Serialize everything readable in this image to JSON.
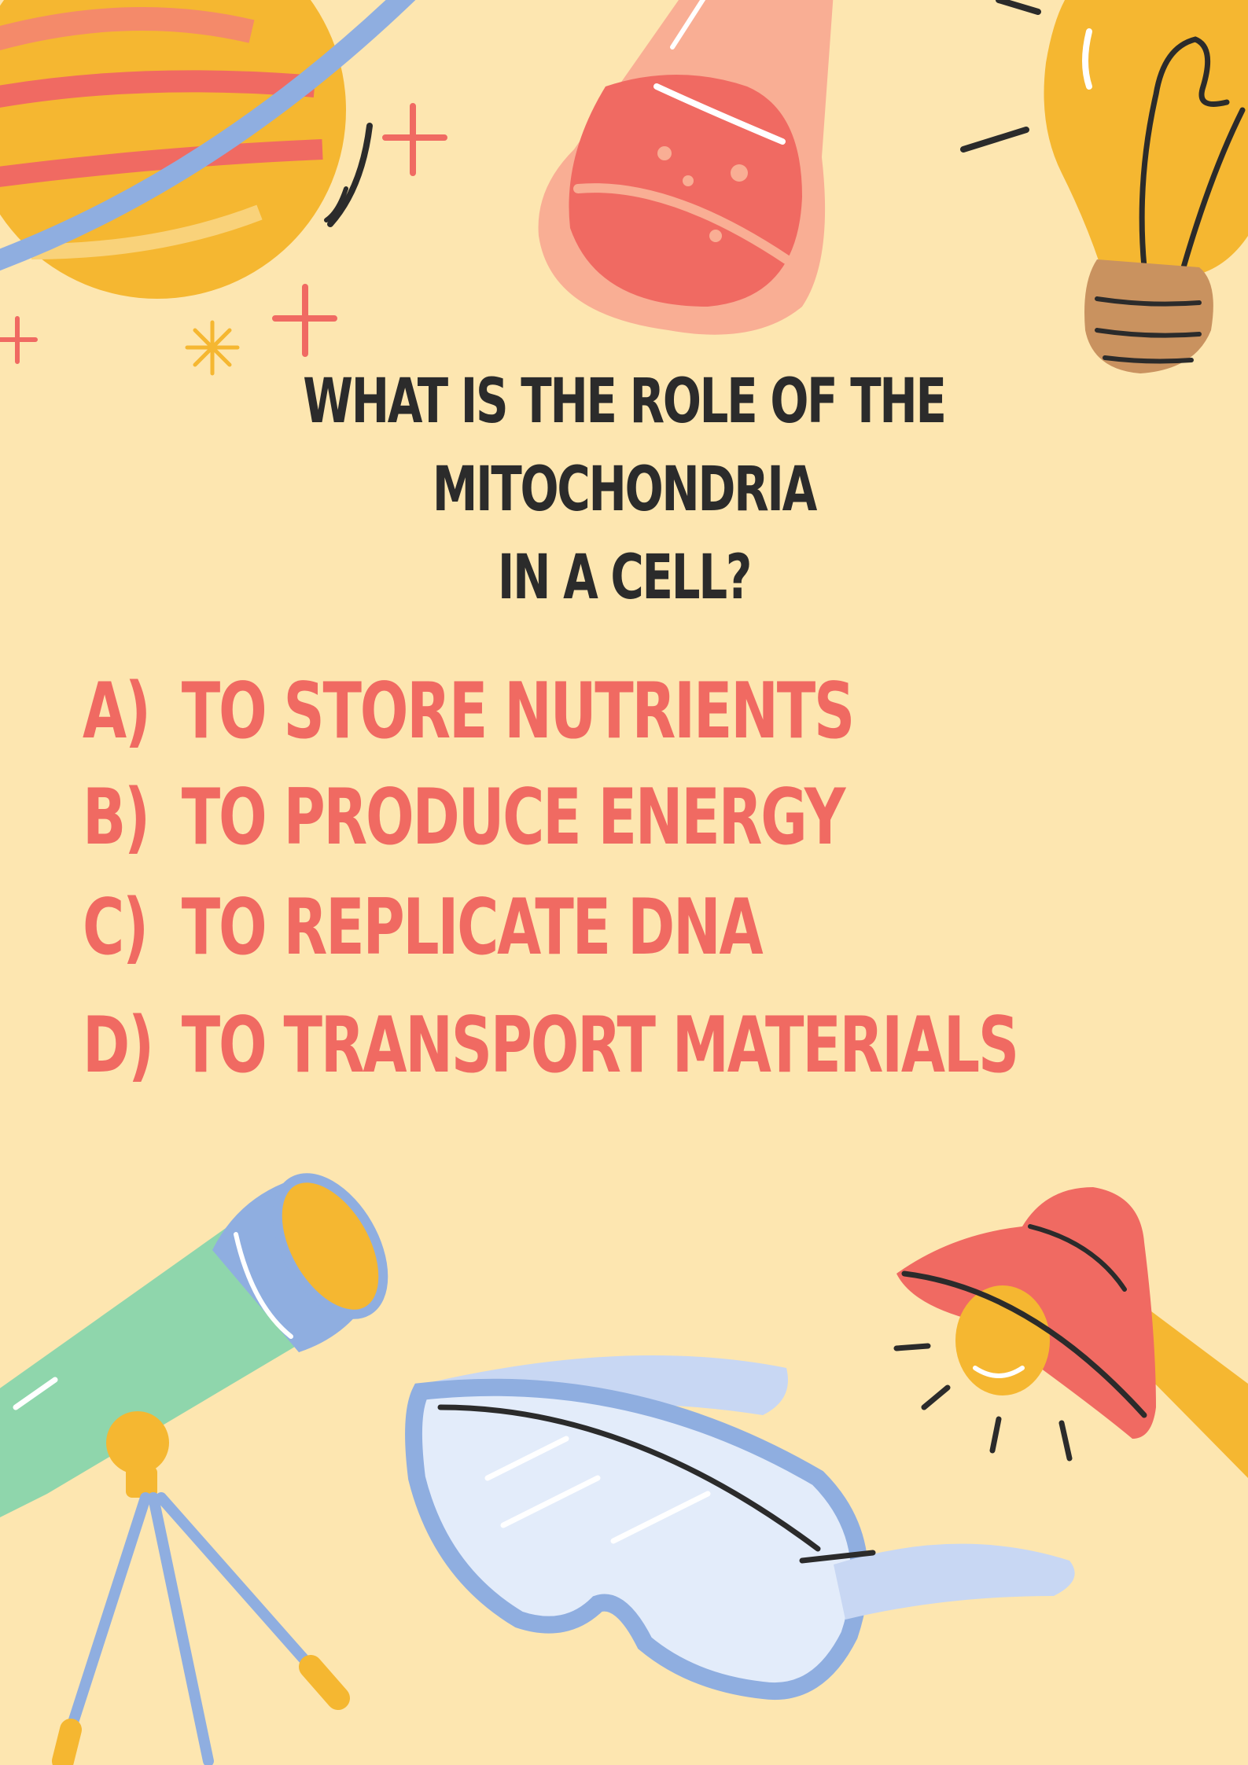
{
  "question": {
    "line1": "WHAT IS THE ROLE OF THE MITOCHONDRIA",
    "line2": "IN A CELL?"
  },
  "options": [
    {
      "letter": "A)",
      "text": "TO STORE NUTRIENTS"
    },
    {
      "letter": "B)",
      "text": "TO PRODUCE ENERGY"
    },
    {
      "letter": "C)",
      "text": "TO REPLICATE DNA"
    },
    {
      "letter": "D)",
      "text": "TO TRANSPORT MATERIALS"
    }
  ],
  "colors": {
    "background": "#FDE6B0",
    "question_text": "#2B2B2B",
    "option_text": "#F06A62",
    "planet": "#F5B731",
    "flask": "#F06A62",
    "telescope": "#8FD6AC",
    "goggles": "#8FAEE0",
    "lamp": "#F06A62"
  },
  "illustrations": [
    "planet-icon",
    "flask-icon",
    "light-bulb-icon",
    "telescope-icon",
    "safety-goggles-icon",
    "desk-lamp-icon",
    "sparkle-icon"
  ]
}
